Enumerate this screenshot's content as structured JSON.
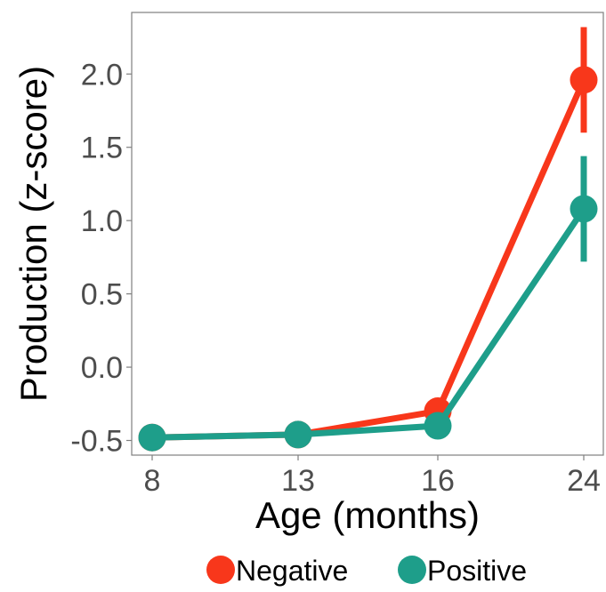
{
  "chart_data": {
    "type": "line",
    "xlabel": "Age (months)",
    "ylabel": "Production (z-score)",
    "categories": [
      "8",
      "13",
      "16",
      "24"
    ],
    "x": [
      8,
      13,
      16,
      24
    ],
    "xticks": [
      "8",
      "13",
      "16",
      "24"
    ],
    "yticks": [
      "-0.5",
      "0.0",
      "0.5",
      "1.0",
      "1.5",
      "2.0"
    ],
    "ylim": [
      -0.6,
      2.42
    ],
    "grid": false,
    "legend_position": "bottom",
    "series": [
      {
        "name": "Negative",
        "color": "#F8371B",
        "values": [
          -0.48,
          -0.46,
          -0.3,
          1.96
        ],
        "error": [
          [
            -0.48,
            -0.48
          ],
          [
            -0.46,
            -0.46
          ],
          [
            -0.3,
            -0.3
          ],
          [
            1.6,
            2.32
          ]
        ]
      },
      {
        "name": "Positive",
        "color": "#1E9E8A",
        "values": [
          -0.48,
          -0.46,
          -0.4,
          1.08
        ],
        "error": [
          [
            -0.48,
            -0.48
          ],
          [
            -0.46,
            -0.46
          ],
          [
            -0.4,
            -0.4
          ],
          [
            0.72,
            1.44
          ]
        ]
      }
    ]
  }
}
